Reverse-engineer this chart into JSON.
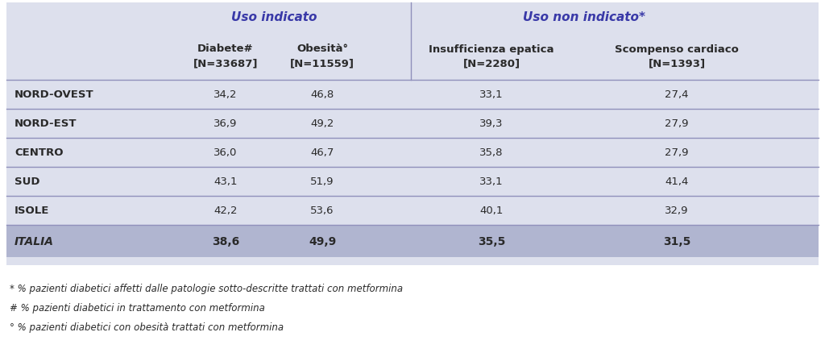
{
  "bg_color": "#dde0ed",
  "italia_bg": "#b0b5d0",
  "white_bg": "#ffffff",
  "group_hdr1": "Uso indicato",
  "group_hdr2": "Uso non indicato*",
  "col_hdrs": [
    "Diabete#\n[N=33687]",
    "Obesità°\n[N=11559]",
    "Insufficienza epatica\n[N=2280]",
    "Scompenso cardiaco\n[N=1393]"
  ],
  "row_labels": [
    "NORD-OVEST",
    "NORD-EST",
    "CENTRO",
    "SUD",
    "ISOLE",
    "ITALIA"
  ],
  "data": [
    [
      "34,2",
      "46,8",
      "33,1",
      "27,4"
    ],
    [
      "36,9",
      "49,2",
      "39,3",
      "27,9"
    ],
    [
      "36,0",
      "46,7",
      "35,8",
      "27,9"
    ],
    [
      "43,1",
      "51,9",
      "33,1",
      "41,4"
    ],
    [
      "42,2",
      "53,6",
      "40,1",
      "32,9"
    ],
    [
      "38,6",
      "49,9",
      "35,5",
      "31,5"
    ]
  ],
  "footnotes": [
    "* % pazienti diabetici affetti dalle patologie sotto-descritte trattati con metformina",
    "# % pazienti diabetici in trattamento con metformina",
    "° % pazienti diabetici con obesità trattati con metformina"
  ],
  "header_color": "#3939a8",
  "text_color": "#2a2a2a",
  "line_color": "#9090bb"
}
